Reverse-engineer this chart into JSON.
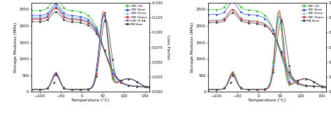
{
  "left_ylabel": "Storage Modulus (MPa)",
  "right_ylabel": "Loss Factor",
  "xlabel": "Temperature (°C)",
  "storage_ylim": [
    0,
    2700
  ],
  "loss_ylim": [
    0,
    0.15
  ],
  "storage_yticks": [
    0,
    500,
    1000,
    1500,
    2000,
    2500
  ],
  "loss_yticks": [
    0.0,
    0.025,
    0.05,
    0.075,
    0.1,
    0.125,
    0.15
  ],
  "xticks": [
    -100,
    -50,
    0,
    50,
    100,
    150
  ],
  "colors": {
    "CNF-OH": "#44bb44",
    "CNF-Neat": "#4455cc",
    "CNF-Perox": "#88cccc",
    "CNF-Silane": "#cc3333",
    "CNF-PI BA": "#6655aa",
    "PA Neat": "#444444"
  },
  "legend1": [
    "CNF-OH",
    "CNF-Neat",
    "CNF-Perox",
    "CNF-Silane",
    "CNF-PI BA",
    "PA Neat"
  ],
  "legend2": [
    "CNF-OH",
    "CNF-Neat",
    "CNF-Perox",
    "CNF-Silane",
    "PA Neat"
  ],
  "storage_left": {
    "CNF-OH": {
      "v0": 2470,
      "v1": 160,
      "tc": 52,
      "tw": 14,
      "bamp": 380,
      "bctr": -62,
      "bw": 11
    },
    "CNF-Neat": {
      "v0": 2320,
      "v1": 155,
      "tc": 54,
      "tw": 14,
      "bamp": 350,
      "bctr": -62,
      "bw": 11
    },
    "CNF-Perox": {
      "v0": 2270,
      "v1": 150,
      "tc": 54,
      "tw": 14,
      "bamp": 330,
      "bctr": -62,
      "bw": 11
    },
    "CNF-Silane": {
      "v0": 2200,
      "v1": 155,
      "tc": 55,
      "tw": 14,
      "bamp": 340,
      "bctr": -62,
      "bw": 11
    },
    "CNF-PI BA": {
      "v0": 2230,
      "v1": 155,
      "tc": 55,
      "tw": 14,
      "bamp": 340,
      "bctr": -62,
      "bw": 11
    },
    "PA Neat": {
      "v0": 2130,
      "v1": 145,
      "tc": 57,
      "tw": 15,
      "bamp": 300,
      "bctr": -62,
      "bw": 11
    }
  },
  "loss_left": {
    "CNF-OH": {
      "mc": 51,
      "ma": 0.128,
      "mw": 10,
      "sc": -62,
      "sa": 0.027,
      "sw": 9
    },
    "CNF-Neat": {
      "mc": 52,
      "ma": 0.125,
      "mw": 11,
      "sc": -62,
      "sa": 0.028,
      "sw": 9
    },
    "CNF-Perox": {
      "mc": 53,
      "ma": 0.122,
      "mw": 11,
      "sc": -62,
      "sa": 0.026,
      "sw": 9
    },
    "CNF-Silane": {
      "mc": 52,
      "ma": 0.13,
      "mw": 10,
      "sc": -62,
      "sa": 0.027,
      "sw": 9
    },
    "CNF-PI BA": {
      "mc": 52,
      "ma": 0.123,
      "mw": 11,
      "sc": -62,
      "sa": 0.026,
      "sw": 9
    },
    "PA Neat": {
      "mc": 56,
      "ma": 0.117,
      "mw": 12,
      "sc": -62,
      "sa": 0.024,
      "sw": 9
    }
  },
  "storage_right": {
    "CNF-OH": {
      "v0": 2490,
      "v1": 165,
      "tc": 48,
      "tw": 13,
      "bamp": 410,
      "bctr": -62,
      "bw": 11
    },
    "CNF-Neat": {
      "v0": 2350,
      "v1": 160,
      "tc": 51,
      "tw": 13,
      "bamp": 375,
      "bctr": -62,
      "bw": 11
    },
    "CNF-Perox": {
      "v0": 2180,
      "v1": 150,
      "tc": 52,
      "tw": 13,
      "bamp": 330,
      "bctr": -62,
      "bw": 11
    },
    "CNF-Silane": {
      "v0": 2150,
      "v1": 165,
      "tc": 53,
      "tw": 13,
      "bamp": 345,
      "bctr": -62,
      "bw": 11
    },
    "PA Neat": {
      "v0": 2100,
      "v1": 155,
      "tc": 56,
      "tw": 14,
      "bamp": 305,
      "bctr": -62,
      "bw": 11
    }
  },
  "loss_right": {
    "CNF-OH": {
      "mc": 47,
      "ma": 0.13,
      "mw": 9,
      "sc": -62,
      "sa": 0.029,
      "sw": 9
    },
    "CNF-Neat": {
      "mc": 49,
      "ma": 0.123,
      "mw": 10,
      "sc": -62,
      "sa": 0.027,
      "sw": 9
    },
    "CNF-Perox": {
      "mc": 50,
      "ma": 0.118,
      "mw": 11,
      "sc": -62,
      "sa": 0.025,
      "sw": 9
    },
    "CNF-Silane": {
      "mc": 49,
      "ma": 0.132,
      "mw": 9,
      "sc": -62,
      "sa": 0.027,
      "sw": 9
    },
    "PA Neat": {
      "mc": 54,
      "ma": 0.114,
      "mw": 12,
      "sc": -62,
      "sa": 0.023,
      "sw": 9
    }
  }
}
